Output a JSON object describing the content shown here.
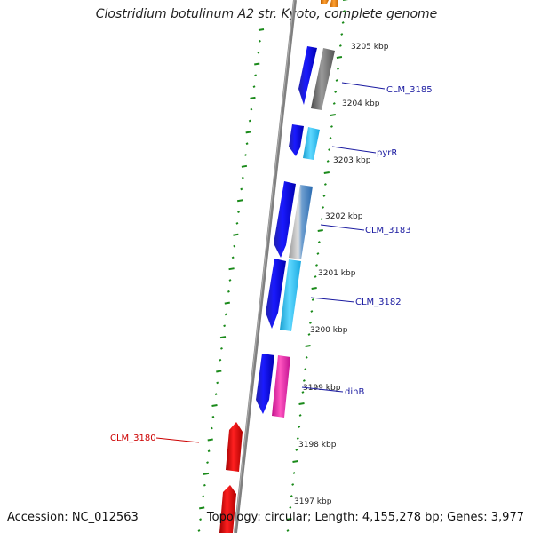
{
  "title": "Clostridium botulinum A2 str. Kyoto, complete genome",
  "footer": {
    "accession": "Accession: NC_012563",
    "topology": "Topology: circular; Length: 4,155,278 bp; Genes: 3,977"
  },
  "colors": {
    "backbone": "#808080",
    "tick": "#1a8a1a",
    "gene_label": "#1a1aa0",
    "highlight_label": "#cc0000"
  },
  "kbp_labels": [
    "3205 kbp",
    "3204 kbp",
    "3203 kbp",
    "3202 kbp",
    "3201 kbp",
    "3200 kbp",
    "3199 kbp",
    "3198 kbp",
    "3197 kbp"
  ],
  "gene_labels": [
    "CLM_3185",
    "pyrR",
    "CLM_3183",
    "CLM_3182",
    "dinB",
    "CLM_3180"
  ]
}
